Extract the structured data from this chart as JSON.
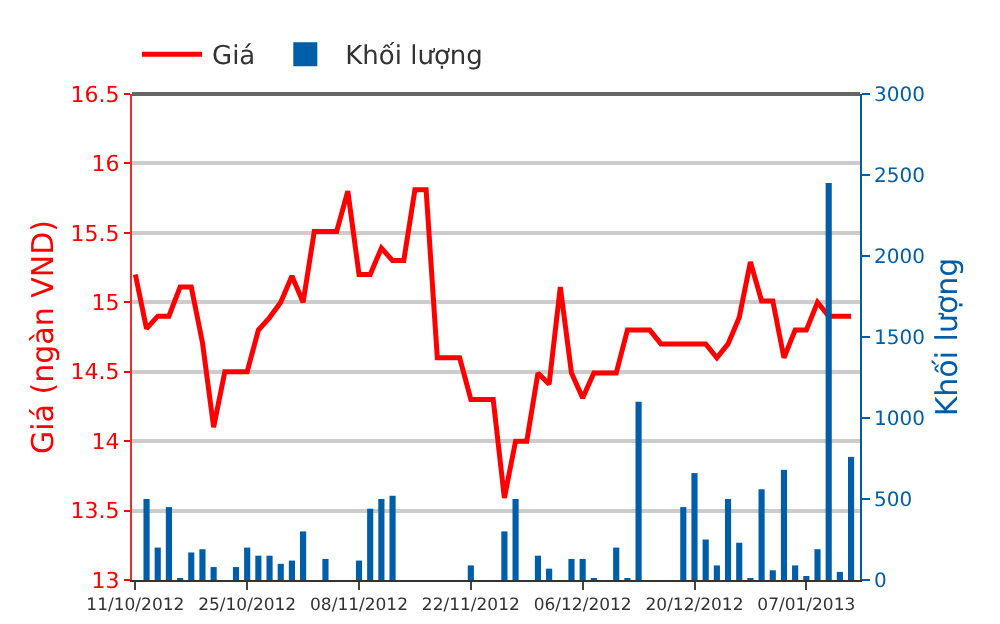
{
  "chart_data": {
    "type": "line",
    "ylabel": "Giá (ngàn VND)",
    "y2label": "Khối lượng",
    "categories": [
      "11/10/2012",
      null,
      null,
      null,
      null,
      null,
      null,
      null,
      null,
      null,
      "25/10/2012",
      null,
      null,
      null,
      null,
      null,
      null,
      null,
      null,
      null,
      "08/11/2012",
      null,
      null,
      null,
      null,
      null,
      null,
      null,
      null,
      null,
      "22/11/2012",
      null,
      null,
      null,
      null,
      null,
      null,
      null,
      null,
      null,
      "06/12/2012",
      null,
      null,
      null,
      null,
      null,
      null,
      null,
      null,
      null,
      "20/12/2012",
      null,
      null,
      null,
      null,
      null,
      null,
      null,
      null,
      null,
      "07/01/2013",
      null,
      null,
      null,
      null
    ],
    "series": [
      {
        "name": "Giá",
        "color": "#ff0000",
        "values": [
          15.2,
          14.81,
          14.9,
          14.9,
          15.11,
          15.11,
          14.71,
          14.1,
          14.5,
          14.5,
          14.5,
          14.8,
          14.89,
          15.0,
          15.19,
          15.0,
          15.51,
          15.51,
          15.51,
          15.8,
          15.2,
          15.2,
          15.39,
          15.3,
          15.3,
          15.81,
          15.81,
          14.6,
          14.6,
          14.6,
          14.3,
          14.3,
          14.3,
          13.59,
          14.0,
          14.0,
          14.49,
          14.41,
          15.11,
          14.49,
          14.31,
          14.49,
          14.49,
          14.49,
          14.8,
          14.8,
          14.8,
          14.7,
          14.7,
          14.7,
          14.7,
          14.7,
          14.6,
          14.7,
          14.89,
          15.29,
          15.01,
          15.01,
          14.6,
          14.8,
          14.8,
          15.0,
          14.9,
          14.9,
          14.9
        ]
      },
      {
        "name": "Khối lượng",
        "type": "bar",
        "axis": "y2",
        "color": "#005da8",
        "values": [
          null,
          500,
          200,
          450,
          10,
          170,
          190,
          80,
          null,
          80,
          200,
          150,
          150,
          100,
          120,
          300,
          null,
          130,
          null,
          null,
          120,
          440,
          500,
          520,
          null,
          null,
          null,
          null,
          null,
          null,
          90,
          null,
          null,
          300,
          500,
          null,
          150,
          70,
          null,
          130,
          130,
          10,
          null,
          200,
          10,
          1100,
          null,
          null,
          null,
          450,
          660,
          250,
          90,
          500,
          230,
          10,
          560,
          60,
          680,
          90,
          20,
          190,
          2450,
          50,
          760
        ]
      }
    ],
    "ylim": [
      13,
      16.5
    ],
    "yticks": [
      13,
      13.5,
      14,
      14.5,
      15,
      15.5,
      16,
      16.5
    ],
    "y2lim": [
      0,
      3000
    ],
    "y2ticks": [
      0,
      500,
      1000,
      1500,
      2000,
      2500,
      3000
    ],
    "grid": "y",
    "legend": "top left"
  }
}
